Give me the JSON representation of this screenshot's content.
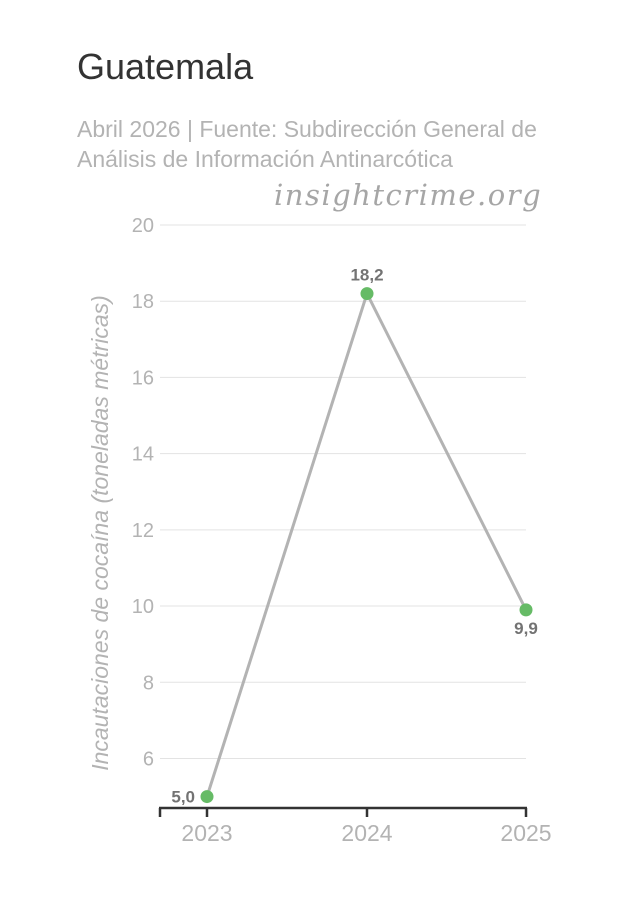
{
  "header": {
    "title": "Guatemala",
    "subtitle": "Abril 2026 | Fuente: Subdirección General de Análisis de Información Antinarcótica",
    "watermark": "insightcrime.org"
  },
  "colors": {
    "line": "#b3b3b3",
    "point": "#66bb66",
    "grid": "#e3e3e3",
    "axis": "#333333",
    "tick_label": "#b3b3b3",
    "data_label": "#737373"
  },
  "chart_data": {
    "type": "line",
    "title": "Guatemala",
    "subtitle": "Abril 2026 | Fuente: Subdirección General de Análisis de Información Antinarcótica",
    "xlabel": "",
    "ylabel": "Incautaciones de cocaína (toneladas métricas)",
    "categories": [
      "2023",
      "2024",
      "2025"
    ],
    "series": [
      {
        "values": [
          5.0,
          18.2,
          9.9
        ],
        "labels": [
          "5,0",
          "18,2",
          "9,9"
        ]
      }
    ],
    "ylim": [
      4.7,
      20
    ],
    "yticks": [
      6,
      8,
      10,
      12,
      14,
      16,
      18,
      20
    ],
    "grid": true,
    "legend": "none"
  }
}
